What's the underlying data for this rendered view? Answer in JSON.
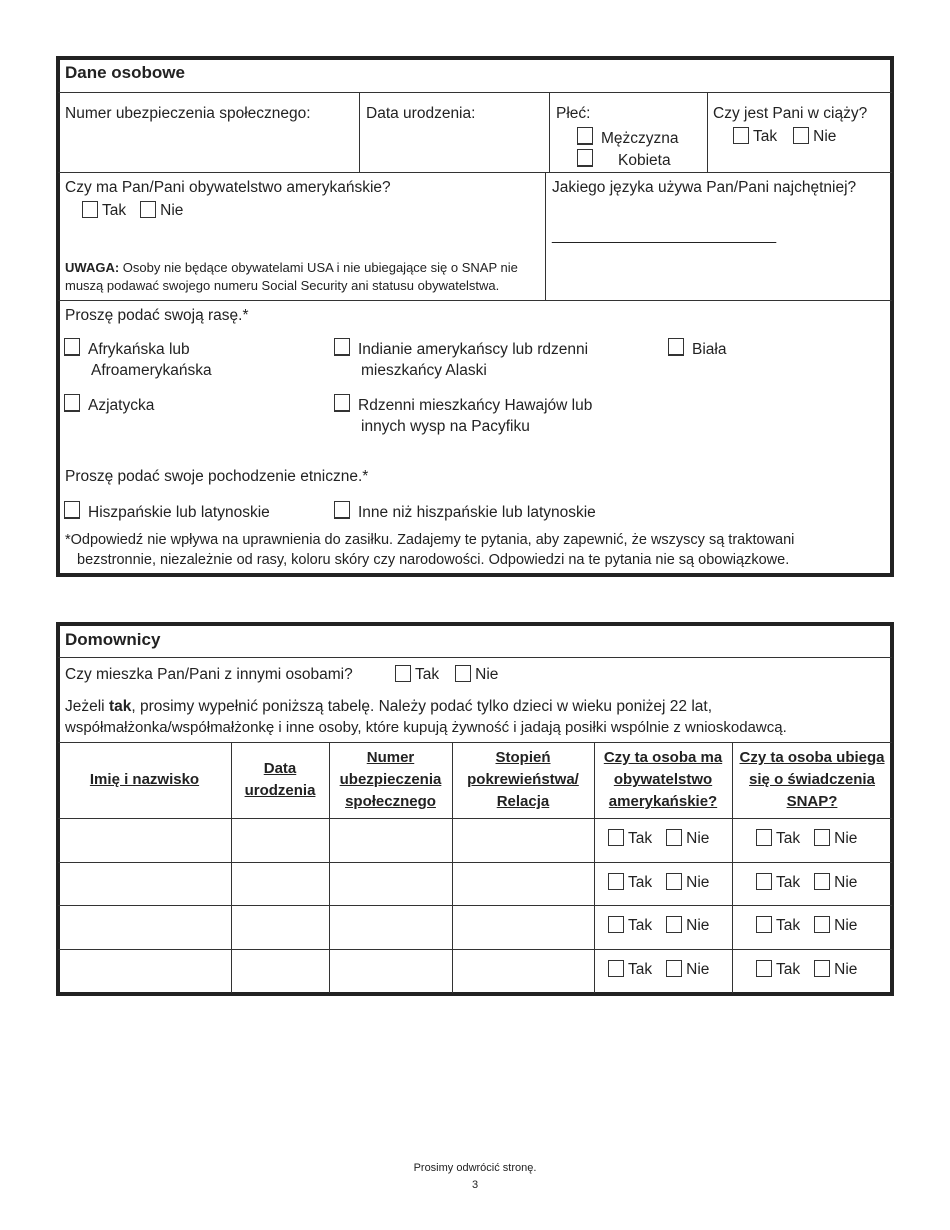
{
  "personal": {
    "title": "Dane osobowe",
    "ssn_label": "Numer ubezpieczenia społecznego:",
    "dob_label": "Data urodzenia:",
    "sex_label": "Płeć:",
    "sex_options": [
      "Mężczyzna",
      "Kobieta"
    ],
    "pregnant_label": "Czy jest Pani w ciąży?",
    "yes": "Tak",
    "no": "Nie",
    "citizen_label": "Czy ma Pan/Pani obywatelstwo amerykańskie?",
    "language_label": "Jakiego języka używa Pan/Pani najchętniej?",
    "language_blank": "__________________________",
    "note_bold": "UWAGA:",
    "note_line1": " Osoby nie będące obywatelami USA i nie ubiegające się o SNAP nie",
    "note_line2": "muszą podawać swojego numeru Social Security ani statusu obywatelstwa.",
    "race_label": "Proszę podać swoją rasę.*",
    "race_options": [
      "Afrykańska lub",
      "Afroamerykańska",
      "Indianie amerykańscy lub rdzenni",
      "mieszkańcy Alaski",
      "Biała",
      "Azjatycka",
      "Rdzenni mieszkańcy Hawajów lub",
      "innych wysp na Pacyfiku"
    ],
    "ethnicity_label": "Proszę podać swoje pochodzenie etniczne.*",
    "ethnicity_options": [
      "Hiszpańskie lub latynoskie",
      "Inne niż hiszpańskie lub latynoskie"
    ],
    "footnote_line1": "*Odpowiedź nie wpływa na uprawnienia do zasiłku. Zadajemy te pytania, aby zapewnić, że wszyscy są traktowani",
    "footnote_line2": "bezstronnie, niezależnie od rasy, koloru skóry czy narodowości. Odpowiedzi na te pytania nie są obowiązkowe."
  },
  "household": {
    "title": "Domownicy",
    "lives_with_label": "Czy mieszka Pan/Pani z innymi osobami?",
    "yes": "Tak",
    "no": "Nie",
    "instr_pre": "Jeżeli ",
    "instr_bold": "tak",
    "instr_post": ", prosimy wypełnić poniższą tabelę. Należy podać tylko dzieci w wieku poniżej 22 lat,",
    "instr_line2": "współmałżonka/współmałżonkę i inne osoby, które kupują żywność i jadają posiłki wspólnie z wnioskodawcą.",
    "columns": [
      "Imię i nazwisko",
      "Data urodzenia",
      "Numer ubezpieczenia społecznego",
      "Stopień pokrewieństwa/ Relacja",
      "Czy ta osoba ma obywatelstwo amerykańskie?",
      "Czy ta osoba ubiega się o świadczenia SNAP?"
    ]
  },
  "footer": {
    "turn_page": "Prosimy odwrócić stronę.",
    "page_number": "3"
  }
}
